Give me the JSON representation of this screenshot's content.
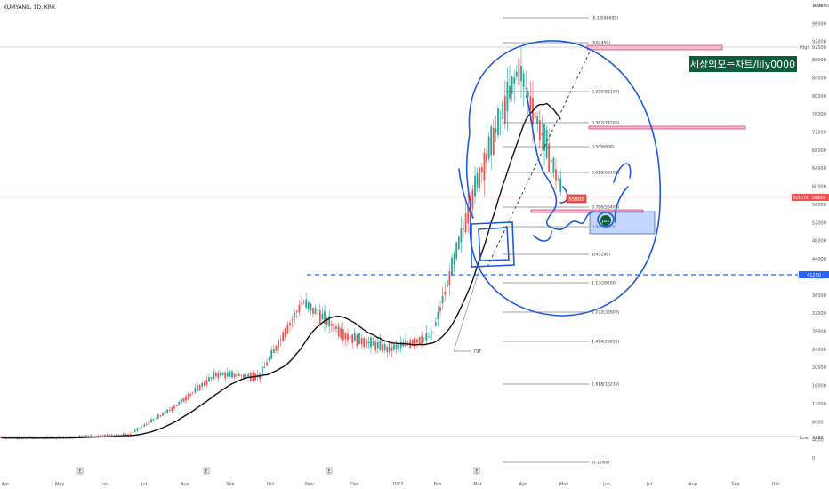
{
  "header": {
    "symbol": "KUMYANG, 1D, KRX"
  },
  "axis": {
    "unit_label": "KRW",
    "y_ticks": [
      "100000",
      "96000",
      "92000",
      "88000",
      "84000",
      "80000",
      "76000",
      "72000",
      "68000",
      "64000",
      "60000",
      "56000",
      "52000",
      "48000",
      "44000",
      "40000",
      "36000",
      "32000",
      "28000",
      "24000",
      "20000",
      "16000",
      "12000",
      "8000",
      "4000",
      "0"
    ],
    "x_ticks": [
      "Apr",
      "May",
      "Jun",
      "Jul",
      "Aug",
      "Sep",
      "Oct",
      "Nov",
      "Dec",
      "2023",
      "Feb",
      "Mar",
      "Apr",
      "May",
      "Jun",
      "Jul",
      "Aug",
      "Sep",
      "Oct"
    ],
    "event_marker": "E",
    "high_label": "High",
    "high_value": "92500",
    "low_label": "Low",
    "low_value": "4290",
    "level_value": "41250",
    "ticker_tag": "001570",
    "last_value": "58900"
  },
  "overlay": {
    "watermark": "세상의모든차트/lily0000",
    "price_callout": "55800",
    "zone_label": "pzz",
    "tiny_label": "79F"
  },
  "fib_labels": [
    "-0.13(98600)",
    "0(92450)",
    "0.236(81100)",
    "0.382(74200)",
    "0.5(68900)",
    "0.618(63100)",
    "0.786(55400)",
    "0.88(51000)",
    "1(45290)",
    "1.13(39200)",
    "1.272(32600)",
    "1.414(25850)",
    "1.618(16230)",
    "2(-1769)"
  ],
  "colors": {
    "up": "#26a69a",
    "down": "#ef5350",
    "blue_ink": "#1f5bd6",
    "ma": "#111111",
    "dashed_level": "#2962ff",
    "band": "#f8bbd0",
    "zone": "#90b4ff"
  },
  "chart_data": {
    "type": "candlestick",
    "title": "KUMYANG, 1D, KRX",
    "ylim": [
      -4000,
      102000
    ],
    "y_axis_unit": "KRW",
    "indicators": [
      "moving average (black line)",
      "Fibonacci retracement levels"
    ],
    "price_path": [
      {
        "date": "2022-04",
        "close": 4500
      },
      {
        "date": "2022-05",
        "close": 4300
      },
      {
        "date": "2022-06",
        "close": 4800
      },
      {
        "date": "2022-07",
        "close": 5200
      },
      {
        "date": "2022-08",
        "close": 11000
      },
      {
        "date": "2022-09",
        "close": 18500
      },
      {
        "date": "2022-10",
        "close": 18000
      },
      {
        "date": "2022-11",
        "close": 34500
      },
      {
        "date": "2022-12",
        "close": 27000
      },
      {
        "date": "2023-01",
        "close": 24000
      },
      {
        "date": "2023-02",
        "close": 27000
      },
      {
        "date": "2023-03",
        "close": 60000
      },
      {
        "date": "2023-04",
        "close": 86000
      },
      {
        "date": "2023-05",
        "close": 58900
      }
    ],
    "levels": {
      "high": 92500,
      "low": 4290,
      "horizontal_level": 41250,
      "last_price": 58900
    }
  }
}
